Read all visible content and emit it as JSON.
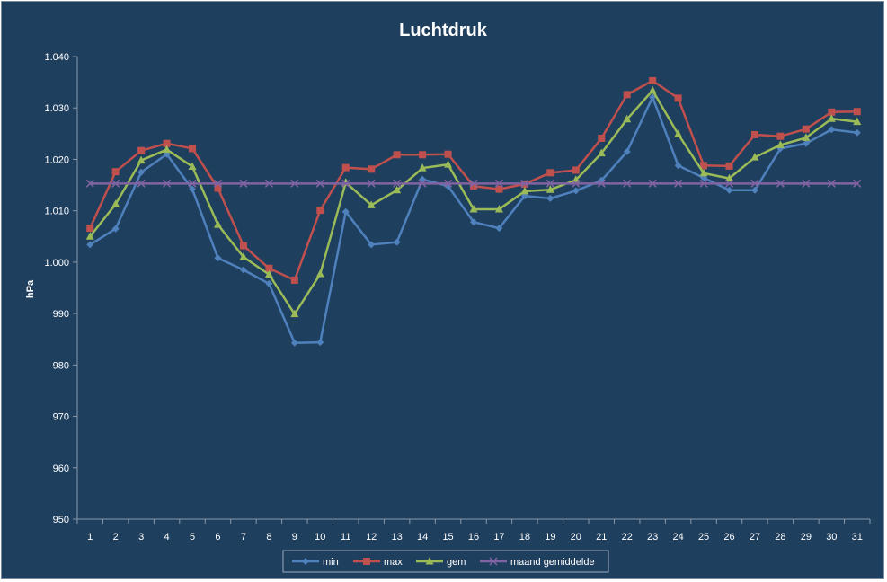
{
  "chart_data": {
    "type": "line",
    "title": "Luchtdruk",
    "xlabel": "",
    "ylabel": "hPa",
    "ylim": [
      950,
      1040
    ],
    "yticks": [
      950,
      960,
      970,
      980,
      990,
      1000,
      1010,
      1020,
      1030,
      1040
    ],
    "ytick_labels": [
      "950",
      "960",
      "970",
      "980",
      "990",
      "1.000",
      "1.010",
      "1.020",
      "1.030",
      "1.040"
    ],
    "categories": [
      "1",
      "2",
      "3",
      "4",
      "5",
      "6",
      "7",
      "8",
      "9",
      "10",
      "11",
      "12",
      "13",
      "14",
      "15",
      "16",
      "17",
      "18",
      "19",
      "20",
      "21",
      "22",
      "23",
      "24",
      "25",
      "26",
      "27",
      "28",
      "29",
      "30",
      "31"
    ],
    "grid": false,
    "legend_position": "bottom",
    "series": [
      {
        "name": "min",
        "color": "#4f81bd",
        "marker": "diamond",
        "values": [
          1003.4,
          1006.5,
          1017.5,
          1021.0,
          1014.2,
          1000.8,
          998.5,
          995.8,
          984.3,
          984.4,
          1009.8,
          1003.4,
          1003.9,
          1016.1,
          1014.8,
          1007.8,
          1006.6,
          1012.9,
          1012.4,
          1013.9,
          1015.9,
          1021.5,
          1032.1,
          1018.8,
          1016.4,
          1014.0,
          1014.0,
          1022.1,
          1023.1,
          1025.8,
          1025.2
        ]
      },
      {
        "name": "max",
        "color": "#c0504d",
        "marker": "square",
        "values": [
          1006.6,
          1017.6,
          1021.7,
          1023.1,
          1022.1,
          1014.4,
          1003.2,
          998.8,
          996.5,
          1010.1,
          1018.4,
          1018.1,
          1020.9,
          1020.9,
          1021.0,
          1014.8,
          1014.2,
          1015.2,
          1017.4,
          1017.9,
          1024.1,
          1032.6,
          1035.3,
          1031.9,
          1018.8,
          1018.7,
          1024.8,
          1024.5,
          1025.9,
          1029.2,
          1029.3
        ]
      },
      {
        "name": "gem",
        "color": "#9bbb59",
        "marker": "triangle",
        "values": [
          1005.0,
          1011.3,
          1019.8,
          1021.9,
          1018.6,
          1007.3,
          1001.0,
          997.6,
          989.9,
          997.7,
          1015.5,
          1011.1,
          1014.0,
          1018.3,
          1019.0,
          1010.3,
          1010.3,
          1013.8,
          1014.1,
          1016.0,
          1021.2,
          1027.8,
          1033.4,
          1024.9,
          1017.3,
          1016.3,
          1020.4,
          1022.8,
          1024.2,
          1027.9,
          1027.3
        ]
      },
      {
        "name": "maand gemiddelde",
        "color": "#8064a2",
        "marker": "x",
        "values": [
          1015.3,
          1015.3,
          1015.3,
          1015.3,
          1015.3,
          1015.3,
          1015.3,
          1015.3,
          1015.3,
          1015.3,
          1015.3,
          1015.3,
          1015.3,
          1015.3,
          1015.3,
          1015.3,
          1015.3,
          1015.3,
          1015.3,
          1015.3,
          1015.3,
          1015.3,
          1015.3,
          1015.3,
          1015.3,
          1015.3,
          1015.3,
          1015.3,
          1015.3,
          1015.3,
          1015.3
        ]
      }
    ]
  }
}
